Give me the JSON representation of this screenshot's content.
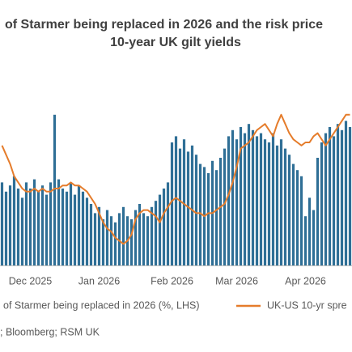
{
  "chart_data": {
    "type": "bar-line",
    "title": "of Starmer being replaced in 2026 and the risk price",
    "subtitle": "10-year UK gilt yields",
    "source": "; Bloomberg; RSM UK",
    "categories": [
      null,
      null,
      null,
      null,
      null,
      null,
      null,
      "Dec 2025",
      null,
      null,
      null,
      null,
      null,
      null,
      null,
      null,
      null,
      null,
      null,
      null,
      null,
      null,
      null,
      null,
      "Jan 2026",
      null,
      null,
      null,
      null,
      null,
      null,
      null,
      null,
      null,
      null,
      null,
      null,
      null,
      null,
      null,
      null,
      null,
      "Feb 2026",
      null,
      null,
      null,
      null,
      null,
      null,
      null,
      null,
      null,
      null,
      null,
      null,
      null,
      null,
      null,
      "Mar 2026",
      null,
      null,
      null,
      null,
      null,
      null,
      null,
      null,
      null,
      null,
      null,
      null,
      null,
      null,
      null,
      null,
      "Apr 2026",
      null,
      null,
      null,
      null,
      null,
      null,
      null,
      null,
      null,
      null,
      null
    ],
    "ylim": [
      0,
      60
    ],
    "y2lim": [
      0.2,
      0.8
    ],
    "series": [
      {
        "name": "of Starmer being replaced in 2026 (%,  LHS)",
        "color": "#2f6f96",
        "values": [
          27,
          24,
          26,
          29,
          25,
          22,
          27,
          25,
          28,
          24,
          26,
          23,
          27,
          49,
          28,
          25,
          24,
          27,
          23,
          26,
          24,
          22,
          20,
          17,
          19,
          15,
          18,
          16,
          14,
          17,
          19,
          16,
          15,
          18,
          20,
          17,
          16,
          19,
          21,
          23,
          25,
          27,
          40,
          42,
          38,
          41,
          37,
          39,
          36,
          33,
          32,
          30,
          34,
          31,
          35,
          38,
          42,
          44,
          41,
          45,
          43,
          46,
          44,
          42,
          43,
          41,
          40,
          43,
          39,
          41,
          38,
          36,
          33,
          31,
          29,
          16,
          22,
          18,
          35,
          40,
          43,
          45,
          42,
          46,
          44,
          47,
          45
        ]
      },
      {
        "name": "UK-US 10-yr spre",
        "color": "#e57c2b",
        "axis": "y2",
        "values": [
          0.59,
          0.56,
          0.53,
          0.49,
          0.47,
          0.45,
          0.44,
          0.44,
          0.45,
          0.44,
          0.45,
          0.44,
          0.44,
          0.45,
          0.45,
          0.46,
          0.46,
          0.47,
          0.46,
          0.46,
          0.45,
          0.44,
          0.42,
          0.4,
          0.37,
          0.34,
          0.32,
          0.31,
          0.29,
          0.28,
          0.27,
          0.28,
          0.3,
          0.35,
          0.37,
          0.38,
          0.38,
          0.37,
          0.36,
          0.34,
          0.37,
          0.39,
          0.41,
          0.42,
          0.41,
          0.4,
          0.39,
          0.38,
          0.37,
          0.37,
          0.36,
          0.37,
          0.37,
          0.38,
          0.39,
          0.4,
          0.43,
          0.47,
          0.52,
          0.58,
          0.59,
          0.6,
          0.62,
          0.64,
          0.65,
          0.66,
          0.64,
          0.62,
          0.66,
          0.69,
          0.66,
          0.63,
          0.61,
          0.6,
          0.59,
          0.6,
          0.6,
          0.62,
          0.63,
          0.61,
          0.59,
          0.61,
          0.63,
          0.65,
          0.67,
          0.69,
          0.69
        ]
      }
    ]
  }
}
